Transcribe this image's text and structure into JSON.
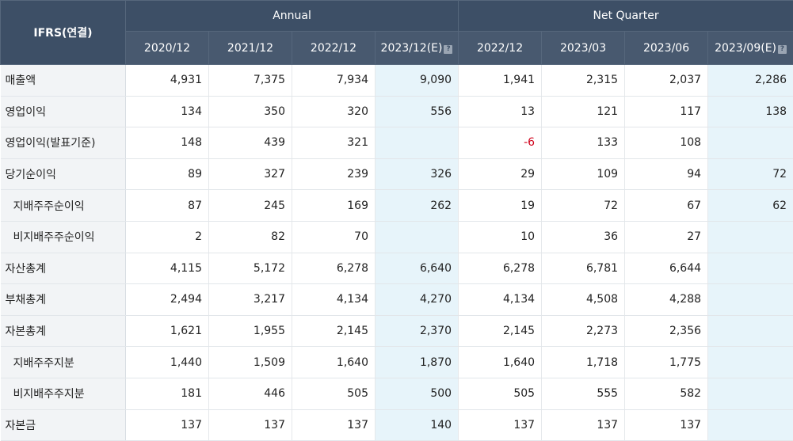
{
  "header": {
    "corner": "IFRS(연결)",
    "group_annual": "Annual",
    "group_quarter": "Net Quarter",
    "periods": [
      "2020/12",
      "2021/12",
      "2022/12",
      "2023/12(E)",
      "2022/12",
      "2023/03",
      "2023/06",
      "2023/09(E)"
    ],
    "estimate_icon": "?"
  },
  "rows": [
    {
      "label": "매출액",
      "values": [
        "4,931",
        "7,375",
        "7,934",
        "9,090",
        "1,941",
        "2,315",
        "2,037",
        "2,286"
      ]
    },
    {
      "label": "영업이익",
      "values": [
        "134",
        "350",
        "320",
        "556",
        "13",
        "121",
        "117",
        "138"
      ]
    },
    {
      "label": "영업이익(발표기준)",
      "values": [
        "148",
        "439",
        "321",
        "",
        "-6",
        "133",
        "108",
        ""
      ]
    },
    {
      "label": "당기순이익",
      "values": [
        "89",
        "327",
        "239",
        "326",
        "29",
        "109",
        "94",
        "72"
      ]
    },
    {
      "label": "지배주주순이익",
      "values": [
        "87",
        "245",
        "169",
        "262",
        "19",
        "72",
        "67",
        "62"
      ]
    },
    {
      "label": "비지배주주순이익",
      "values": [
        "2",
        "82",
        "70",
        "",
        "10",
        "36",
        "27",
        ""
      ]
    },
    {
      "label": "자산총계",
      "values": [
        "4,115",
        "5,172",
        "6,278",
        "6,640",
        "6,278",
        "6,781",
        "6,644",
        ""
      ]
    },
    {
      "label": "부채총계",
      "values": [
        "2,494",
        "3,217",
        "4,134",
        "4,270",
        "4,134",
        "4,508",
        "4,288",
        ""
      ]
    },
    {
      "label": "자본총계",
      "values": [
        "1,621",
        "1,955",
        "2,145",
        "2,370",
        "2,145",
        "2,273",
        "2,356",
        ""
      ]
    },
    {
      "label": "지배주주지분",
      "values": [
        "1,440",
        "1,509",
        "1,640",
        "1,870",
        "1,640",
        "1,718",
        "1,775",
        ""
      ]
    },
    {
      "label": "비지배주주지분",
      "values": [
        "181",
        "446",
        "505",
        "500",
        "505",
        "555",
        "582",
        ""
      ]
    },
    {
      "label": "자본금",
      "values": [
        "137",
        "137",
        "137",
        "140",
        "137",
        "137",
        "137",
        ""
      ]
    }
  ],
  "colors": {
    "header_bg": "#3d4f66",
    "label_bg": "#f2f4f6",
    "estimate_bg": "#e7f4fa",
    "negative": "#d0021b"
  }
}
